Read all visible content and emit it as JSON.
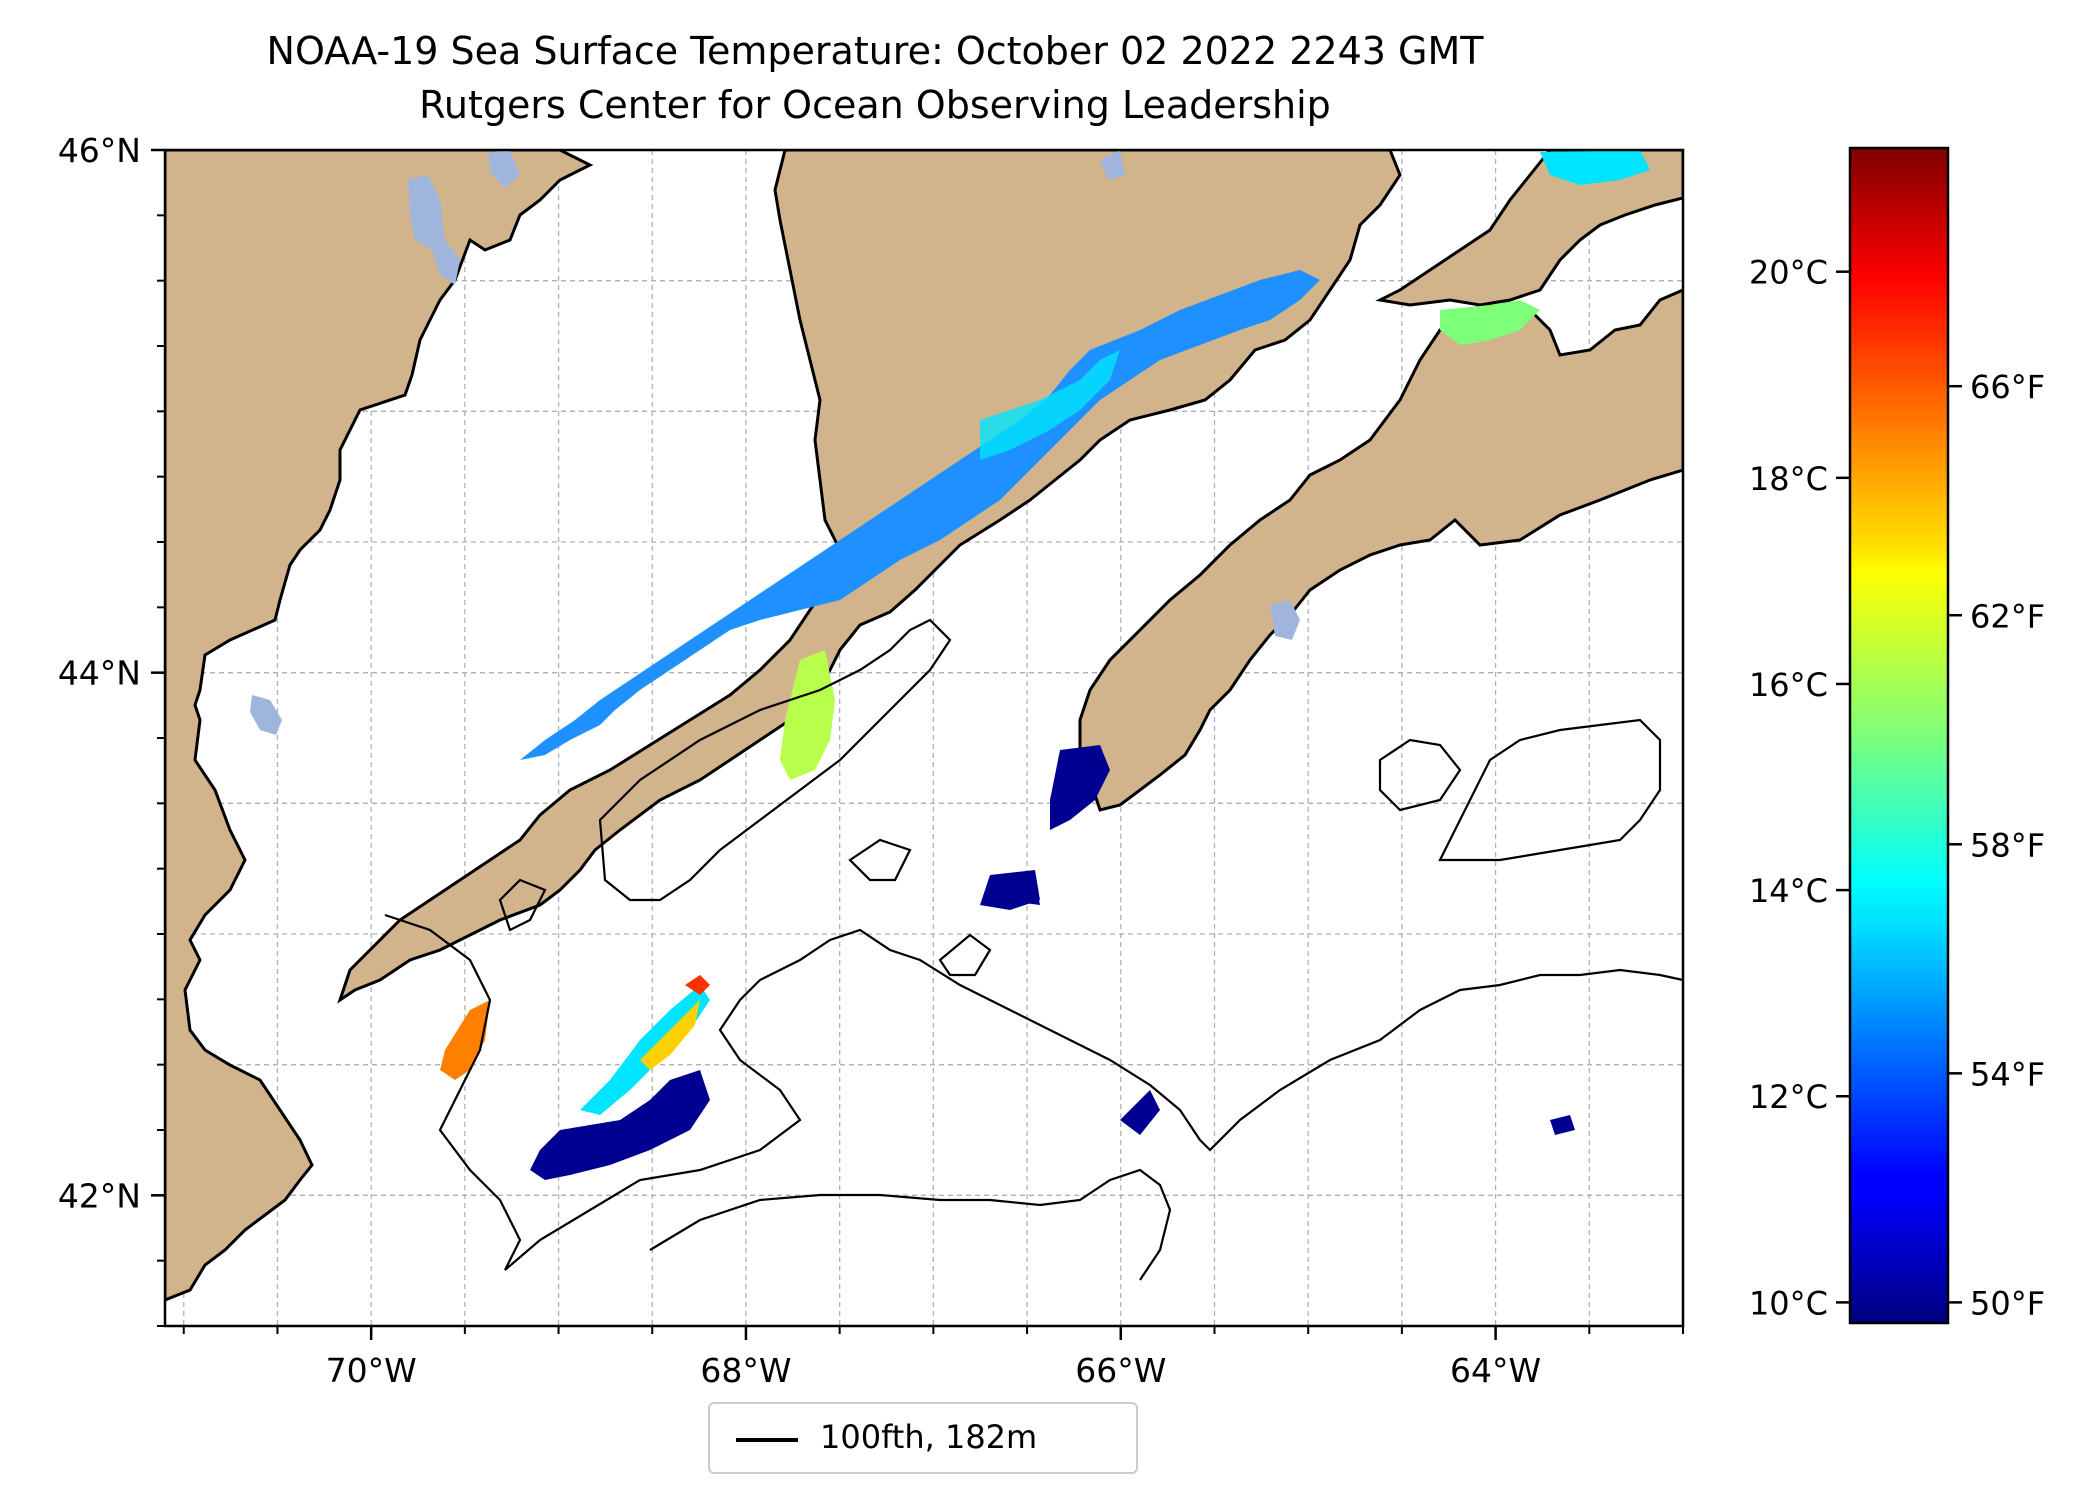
{
  "title": "NOAA-19 Sea Surface Temperature: October 02 2022 2243 GMT",
  "subtitle": "Rutgers Center for Ocean Observing Leadership",
  "map": {
    "lon_range": [
      -71.1,
      -63.0
    ],
    "lat_range": [
      41.5,
      46.0
    ],
    "lon_ticks": [
      {
        "value": -70,
        "label": "70°W"
      },
      {
        "value": -68,
        "label": "68°W"
      },
      {
        "value": -66,
        "label": "66°W"
      },
      {
        "value": -64,
        "label": "64°W"
      }
    ],
    "lat_ticks": [
      {
        "value": 46,
        "label": "46°N"
      },
      {
        "value": 44,
        "label": "44°N"
      },
      {
        "value": 42,
        "label": "42°N"
      }
    ],
    "gridlines": true,
    "land_color": "#d2b48c",
    "lake_color": "#9fb5db",
    "ocean_color": "#ffffff"
  },
  "colorbar": {
    "colormap": "jet",
    "range_c": [
      9.8,
      21.2
    ],
    "celsius_ticks": [
      {
        "value": 10,
        "label": "10°C"
      },
      {
        "value": 12,
        "label": "12°C"
      },
      {
        "value": 14,
        "label": "14°C"
      },
      {
        "value": 16,
        "label": "16°C"
      },
      {
        "value": 18,
        "label": "18°C"
      },
      {
        "value": 20,
        "label": "20°C"
      }
    ],
    "fahrenheit_ticks": [
      {
        "value": 50,
        "label": "50°F"
      },
      {
        "value": 54,
        "label": "54°F"
      },
      {
        "value": 58,
        "label": "58°F"
      },
      {
        "value": 62,
        "label": "62°F"
      },
      {
        "value": 66,
        "label": "66°F"
      }
    ]
  },
  "legend": {
    "label": "100fth, 182m",
    "line_color": "#000000",
    "placement": "bottom-center"
  }
}
